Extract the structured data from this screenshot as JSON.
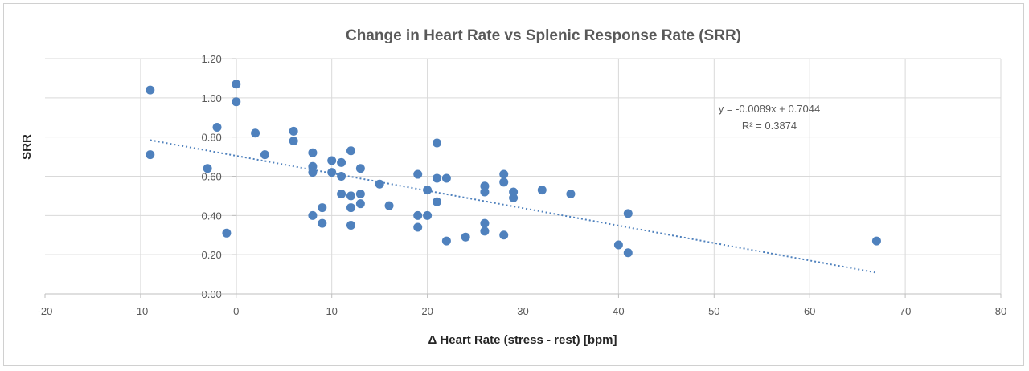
{
  "chart_data": {
    "type": "scatter",
    "title": "Change in Heart Rate vs Splenic Response Rate (SRR)",
    "xlabel": "Δ Heart Rate (stress - rest) [bpm]",
    "ylabel": "SRR",
    "xlim": [
      -20,
      80
    ],
    "ylim": [
      0,
      1.2
    ],
    "x_ticks": [
      "-20",
      "-10",
      "0",
      "10",
      "20",
      "30",
      "40",
      "50",
      "60",
      "70",
      "80"
    ],
    "y_ticks": [
      "0.00",
      "0.20",
      "0.40",
      "0.60",
      "0.80",
      "1.00",
      "1.20"
    ],
    "grid": true,
    "legend": "none",
    "colors": {
      "marker": "#4f81bd",
      "trendline": "#4f81bd",
      "grid": "#d9d9d9",
      "axis": "#bfbfbf"
    },
    "series": [
      {
        "points": [
          [
            -9,
            1.04
          ],
          [
            -9,
            0.71
          ],
          [
            -3,
            0.64
          ],
          [
            -2,
            0.85
          ],
          [
            -1,
            0.31
          ],
          [
            0,
            1.07
          ],
          [
            0,
            0.98
          ],
          [
            2,
            0.82
          ],
          [
            3,
            0.71
          ],
          [
            6,
            0.83
          ],
          [
            6,
            0.78
          ],
          [
            8,
            0.72
          ],
          [
            8,
            0.65
          ],
          [
            8,
            0.62
          ],
          [
            8,
            0.4
          ],
          [
            9,
            0.44
          ],
          [
            9,
            0.36
          ],
          [
            10,
            0.68
          ],
          [
            10,
            0.62
          ],
          [
            11,
            0.67
          ],
          [
            11,
            0.6
          ],
          [
            11,
            0.51
          ],
          [
            12,
            0.73
          ],
          [
            12,
            0.5
          ],
          [
            12,
            0.44
          ],
          [
            12,
            0.35
          ],
          [
            13,
            0.64
          ],
          [
            13,
            0.51
          ],
          [
            13,
            0.46
          ],
          [
            15,
            0.56
          ],
          [
            16,
            0.45
          ],
          [
            19,
            0.61
          ],
          [
            19,
            0.4
          ],
          [
            19,
            0.34
          ],
          [
            20,
            0.53
          ],
          [
            20,
            0.4
          ],
          [
            21,
            0.77
          ],
          [
            21,
            0.59
          ],
          [
            21,
            0.47
          ],
          [
            22,
            0.59
          ],
          [
            22,
            0.27
          ],
          [
            24,
            0.29
          ],
          [
            26,
            0.55
          ],
          [
            26,
            0.52
          ],
          [
            26,
            0.36
          ],
          [
            26,
            0.32
          ],
          [
            28,
            0.61
          ],
          [
            28,
            0.57
          ],
          [
            28,
            0.3
          ],
          [
            29,
            0.52
          ],
          [
            29,
            0.49
          ],
          [
            32,
            0.53
          ],
          [
            35,
            0.51
          ],
          [
            40,
            0.25
          ],
          [
            41,
            0.41
          ],
          [
            41,
            0.21
          ],
          [
            67,
            0.27
          ]
        ]
      }
    ],
    "trendline": {
      "type": "linear",
      "slope": -0.0089,
      "intercept": 0.7044,
      "x_range": [
        -9,
        67
      ],
      "equation_label": "y = -0.0089x + 0.7044",
      "r2_label": "R² = 0.3874"
    }
  }
}
